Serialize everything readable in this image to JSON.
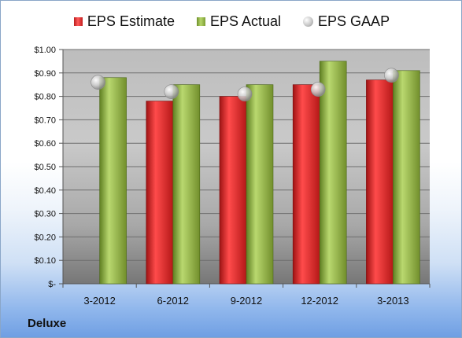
{
  "chart_data": {
    "type": "bar",
    "categories": [
      "3-2012",
      "6-2012",
      "9-2012",
      "12-2012",
      "3-2013"
    ],
    "series": [
      {
        "name": "EPS Estimate",
        "values": [
          null,
          0.78,
          0.8,
          0.85,
          0.87
        ],
        "color": "#c81e1e"
      },
      {
        "name": "EPS Actual",
        "values": [
          0.88,
          0.85,
          0.85,
          0.95,
          0.91
        ],
        "color": "#8fb243"
      },
      {
        "name": "EPS GAAP",
        "values": [
          0.86,
          0.82,
          0.81,
          0.83,
          0.89
        ],
        "color": "#c0c0c0",
        "marker": "sphere"
      }
    ],
    "ylim": [
      0,
      1.0
    ],
    "yticks": [
      0,
      0.1,
      0.2,
      0.3,
      0.4,
      0.5,
      0.6,
      0.7,
      0.8,
      0.9,
      1.0
    ],
    "ytick_labels": [
      "$-",
      "$0.10",
      "$0.20",
      "$0.30",
      "$0.40",
      "$0.50",
      "$0.60",
      "$0.70",
      "$0.80",
      "$0.90",
      "$1.00"
    ],
    "legend_position": "top-center",
    "grid": true
  },
  "legend": {
    "estimate_label": "EPS Estimate",
    "actual_label": "EPS Actual",
    "gaap_label": "EPS GAAP"
  },
  "company": "Deluxe"
}
